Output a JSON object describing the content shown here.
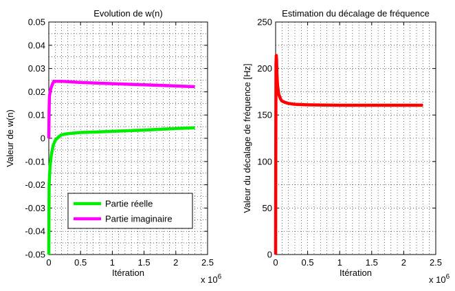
{
  "chart_data": [
    {
      "type": "line",
      "title": "Evolution de w(n)",
      "xlabel": "Itération",
      "ylabel": "Valeur de w(n)",
      "x_multiplier": "x 10",
      "x_multiplier_exponent": "6",
      "xlim": [
        0,
        2.5
      ],
      "ylim": [
        -0.05,
        0.05
      ],
      "xticks": [
        "0",
        "0.5",
        "1",
        "1.5",
        "2",
        "2.5"
      ],
      "yticks": [
        "-0.05",
        "-0.04",
        "-0.03",
        "-0.02",
        "-0.01",
        "0",
        "0.01",
        "0.02",
        "0.03",
        "0.04",
        "0.05"
      ],
      "grid": true,
      "legend_position": "bottom-left",
      "series": [
        {
          "name": "Partie réelle",
          "color": "#00ee00",
          "x": [
            0,
            0.005,
            0.01,
            0.02,
            0.04,
            0.07,
            0.1,
            0.15,
            0.2,
            0.3,
            0.5,
            0.75,
            1.0,
            1.5,
            2.0,
            2.3
          ],
          "y": [
            -0.05,
            -0.02,
            -0.017,
            -0.012,
            -0.007,
            -0.003,
            -0.001,
            0.0005,
            0.0015,
            0.002,
            0.0025,
            0.0027,
            0.003,
            0.0035,
            0.0042,
            0.0045
          ]
        },
        {
          "name": "Partie imaginaire",
          "color": "#ff00ff",
          "x": [
            0,
            0.005,
            0.01,
            0.02,
            0.04,
            0.06,
            0.08,
            0.1,
            0.2,
            0.5,
            1.0,
            1.5,
            2.0,
            2.3
          ],
          "y": [
            0,
            0.012,
            0.018,
            0.02,
            0.022,
            0.0235,
            0.0245,
            0.0245,
            0.0245,
            0.024,
            0.0235,
            0.023,
            0.0225,
            0.0222
          ]
        }
      ]
    },
    {
      "type": "line",
      "title": "Estimation du décalage de fréquence",
      "xlabel": "Itération",
      "ylabel": "Valeur du décalage de fréquence [Hz]",
      "x_multiplier": "x 10",
      "x_multiplier_exponent": "6",
      "xlim": [
        0,
        2.5
      ],
      "ylim": [
        0,
        250
      ],
      "xticks": [
        "0",
        "0.5",
        "1",
        "1.5",
        "2",
        "2.5"
      ],
      "yticks": [
        "0",
        "50",
        "100",
        "150",
        "200",
        "250"
      ],
      "grid": true,
      "series": [
        {
          "color": "#ff0000",
          "x": [
            0,
            0.003,
            0.006,
            0.01,
            0.015,
            0.02,
            0.03,
            0.05,
            0.08,
            0.1,
            0.15,
            0.2,
            0.3,
            0.5,
            1.0,
            1.5,
            2.0,
            2.3
          ],
          "y": [
            0,
            120,
            205,
            214,
            210,
            195,
            182,
            172,
            167,
            165,
            163.5,
            162.5,
            161.5,
            161,
            160.5,
            160.5,
            160.5,
            160.5
          ]
        }
      ]
    }
  ]
}
